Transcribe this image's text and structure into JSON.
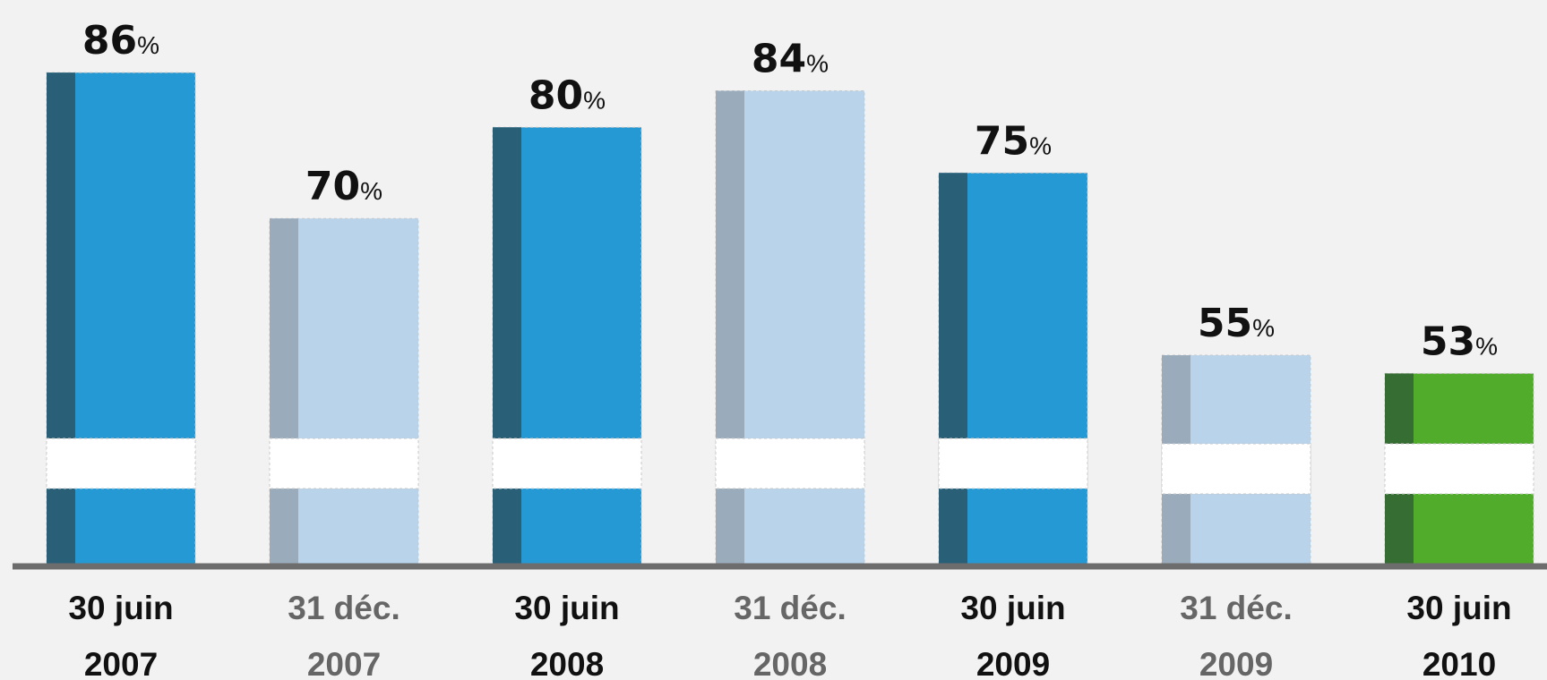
{
  "chart_data": {
    "type": "bar",
    "categories": [
      {
        "line1": "30 juin",
        "line2": "2007"
      },
      {
        "line1": "31 déc.",
        "line2": "2007"
      },
      {
        "line1": "30 juin",
        "line2": "2008"
      },
      {
        "line1": "31 déc.",
        "line2": "2008"
      },
      {
        "line1": "30 juin",
        "line2": "2009"
      },
      {
        "line1": "31 déc.",
        "line2": "2009"
      },
      {
        "line1": "30 juin",
        "line2": "2010"
      }
    ],
    "values": [
      86,
      70,
      80,
      84,
      75,
      55,
      53
    ],
    "value_suffix": "%",
    "styles": [
      "dark-blue",
      "light-blue",
      "dark-blue",
      "light-blue",
      "dark-blue",
      "light-blue",
      "green"
    ],
    "axis_break": true,
    "grid": false,
    "legend": "none"
  },
  "colors": {
    "background": "#f2f2f2",
    "axis": "#6d6d6d",
    "dark-blue": {
      "main": "#2599d4",
      "side": "#296077",
      "label": "#111111"
    },
    "light-blue": {
      "main": "#b8d3ea",
      "side": "#9aabbb",
      "label": "#666666"
    },
    "green": {
      "main": "#51ac2b",
      "side": "#366d32",
      "label": "#111111"
    },
    "value_text": "#111111"
  }
}
